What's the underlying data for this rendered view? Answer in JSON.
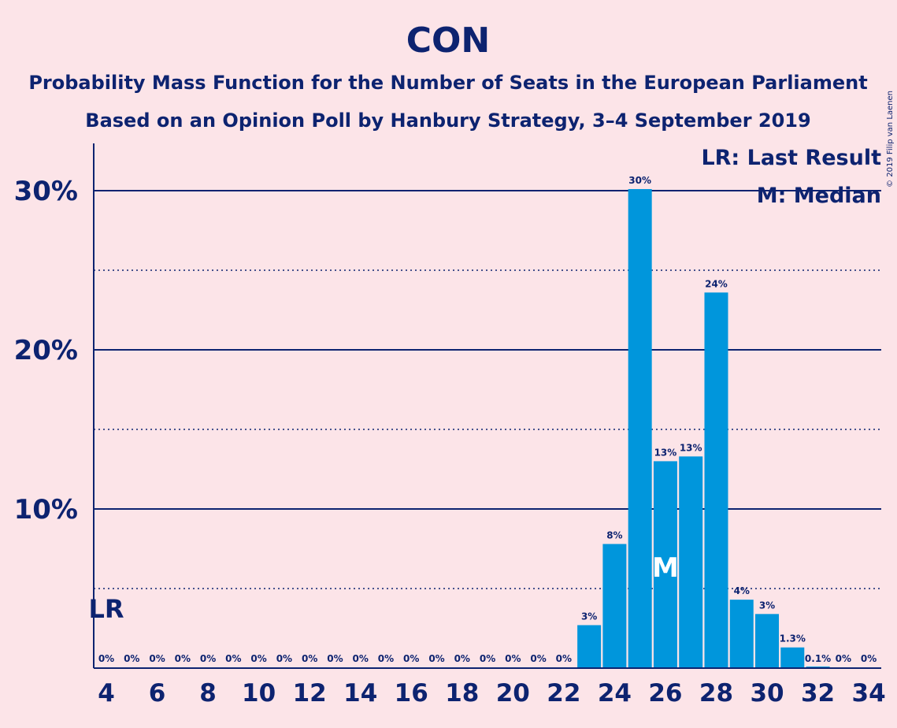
{
  "chart_data": {
    "type": "bar",
    "title": "CON",
    "subtitle_1": "Probability Mass Function for the Number of Seats in the European Parliament",
    "subtitle_2": "Based on an Opinion Poll by Hanbury Strategy, 3–4 September 2019",
    "copyright": "© 2019 Filip van Laenen",
    "x": [
      4,
      5,
      6,
      7,
      8,
      9,
      10,
      11,
      12,
      13,
      14,
      15,
      16,
      17,
      18,
      19,
      20,
      21,
      22,
      23,
      24,
      25,
      26,
      27,
      28,
      29,
      30,
      31,
      32,
      33,
      34
    ],
    "values": [
      0,
      0,
      0,
      0,
      0,
      0,
      0,
      0,
      0,
      0,
      0,
      0,
      0,
      0,
      0,
      0,
      0,
      0,
      0,
      2.7,
      7.8,
      30.1,
      13.0,
      13.3,
      23.6,
      4.3,
      3.4,
      1.3,
      0.1,
      0,
      0
    ],
    "data_labels": [
      "0%",
      "0%",
      "0%",
      "0%",
      "0%",
      "0%",
      "0%",
      "0%",
      "0%",
      "0%",
      "0%",
      "0%",
      "0%",
      "0%",
      "0%",
      "0%",
      "0%",
      "0%",
      "0%",
      "3%",
      "8%",
      "30%",
      "13%",
      "13%",
      "24%",
      "4%",
      "3%",
      "1.3%",
      "0.1%",
      "0%",
      "0%"
    ],
    "x_tick_labels": [
      "4",
      "6",
      "8",
      "10",
      "12",
      "14",
      "16",
      "18",
      "20",
      "22",
      "24",
      "26",
      "28",
      "30",
      "32",
      "34"
    ],
    "x_tick_values": [
      4,
      6,
      8,
      10,
      12,
      14,
      16,
      18,
      20,
      22,
      24,
      26,
      28,
      30,
      32,
      34
    ],
    "y_tick_labels": [
      "10%",
      "20%",
      "30%"
    ],
    "y_tick_values": [
      10,
      20,
      30
    ],
    "ylim": [
      0,
      33
    ],
    "bar_color": "#0096dc",
    "grid_color": "#0d2370",
    "last_result_seat": 4,
    "median_seat": 26,
    "lr_label": "LR",
    "median_label": "M",
    "legend": {
      "position": "top-right",
      "lr_text": "LR: Last Result",
      "median_text": "M: Median"
    }
  }
}
